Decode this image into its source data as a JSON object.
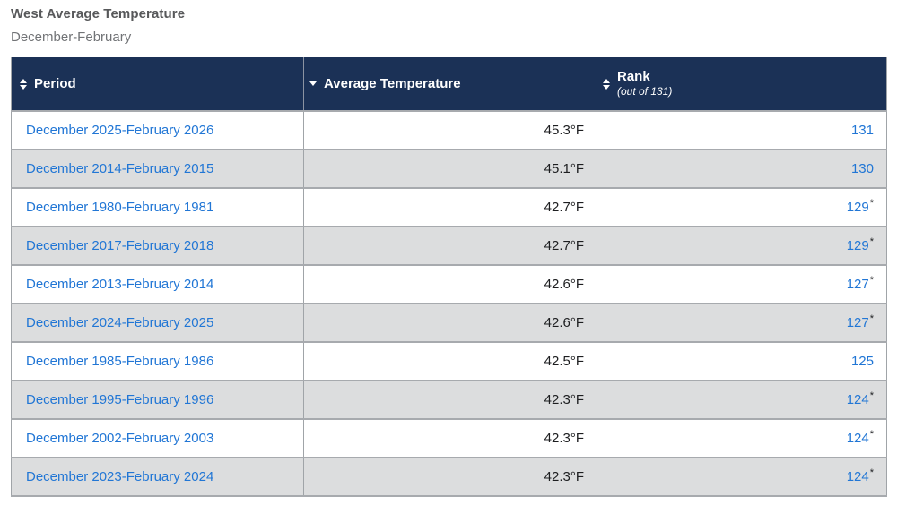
{
  "page": {
    "title": "West Average Temperature",
    "subtitle": "December-February"
  },
  "table": {
    "columns": [
      {
        "label": "Period",
        "sort_state": "unsorted",
        "sort_icon": "sort-both-icon"
      },
      {
        "label": "Average Temperature",
        "sort_state": "descending",
        "sort_icon": "sort-desc-icon"
      },
      {
        "label": "Rank",
        "sublabel": "(out of 131)",
        "sort_state": "unsorted",
        "sort_icon": "sort-both-icon"
      }
    ],
    "rows": [
      {
        "period": "December 2025-February 2026",
        "temperature": "45.3°F",
        "rank": "131",
        "asterisk": false
      },
      {
        "period": "December 2014-February 2015",
        "temperature": "45.1°F",
        "rank": "130",
        "asterisk": false
      },
      {
        "period": "December 1980-February 1981",
        "temperature": "42.7°F",
        "rank": "129",
        "asterisk": true
      },
      {
        "period": "December 2017-February 2018",
        "temperature": "42.7°F",
        "rank": "129",
        "asterisk": true
      },
      {
        "period": "December 2013-February 2014",
        "temperature": "42.6°F",
        "rank": "127",
        "asterisk": true
      },
      {
        "period": "December 2024-February 2025",
        "temperature": "42.6°F",
        "rank": "127",
        "asterisk": true
      },
      {
        "period": "December 1985-February 1986",
        "temperature": "42.5°F",
        "rank": "125",
        "asterisk": false
      },
      {
        "period": "December 1995-February 1996",
        "temperature": "42.3°F",
        "rank": "124",
        "asterisk": true
      },
      {
        "period": "December 2002-February 2003",
        "temperature": "42.3°F",
        "rank": "124",
        "asterisk": true
      },
      {
        "period": "December 2023-February 2024",
        "temperature": "42.3°F",
        "rank": "124",
        "asterisk": true
      }
    ],
    "asterisk_symbol": "*"
  },
  "colors": {
    "header_background": "#1b3156",
    "header_text": "#ffffff",
    "link_blue": "#2176d5",
    "zebra_gray": "#dcddde",
    "border_gray": "#a7aaae",
    "title_gray": "#57585a",
    "body_text": "#1d1e20"
  }
}
